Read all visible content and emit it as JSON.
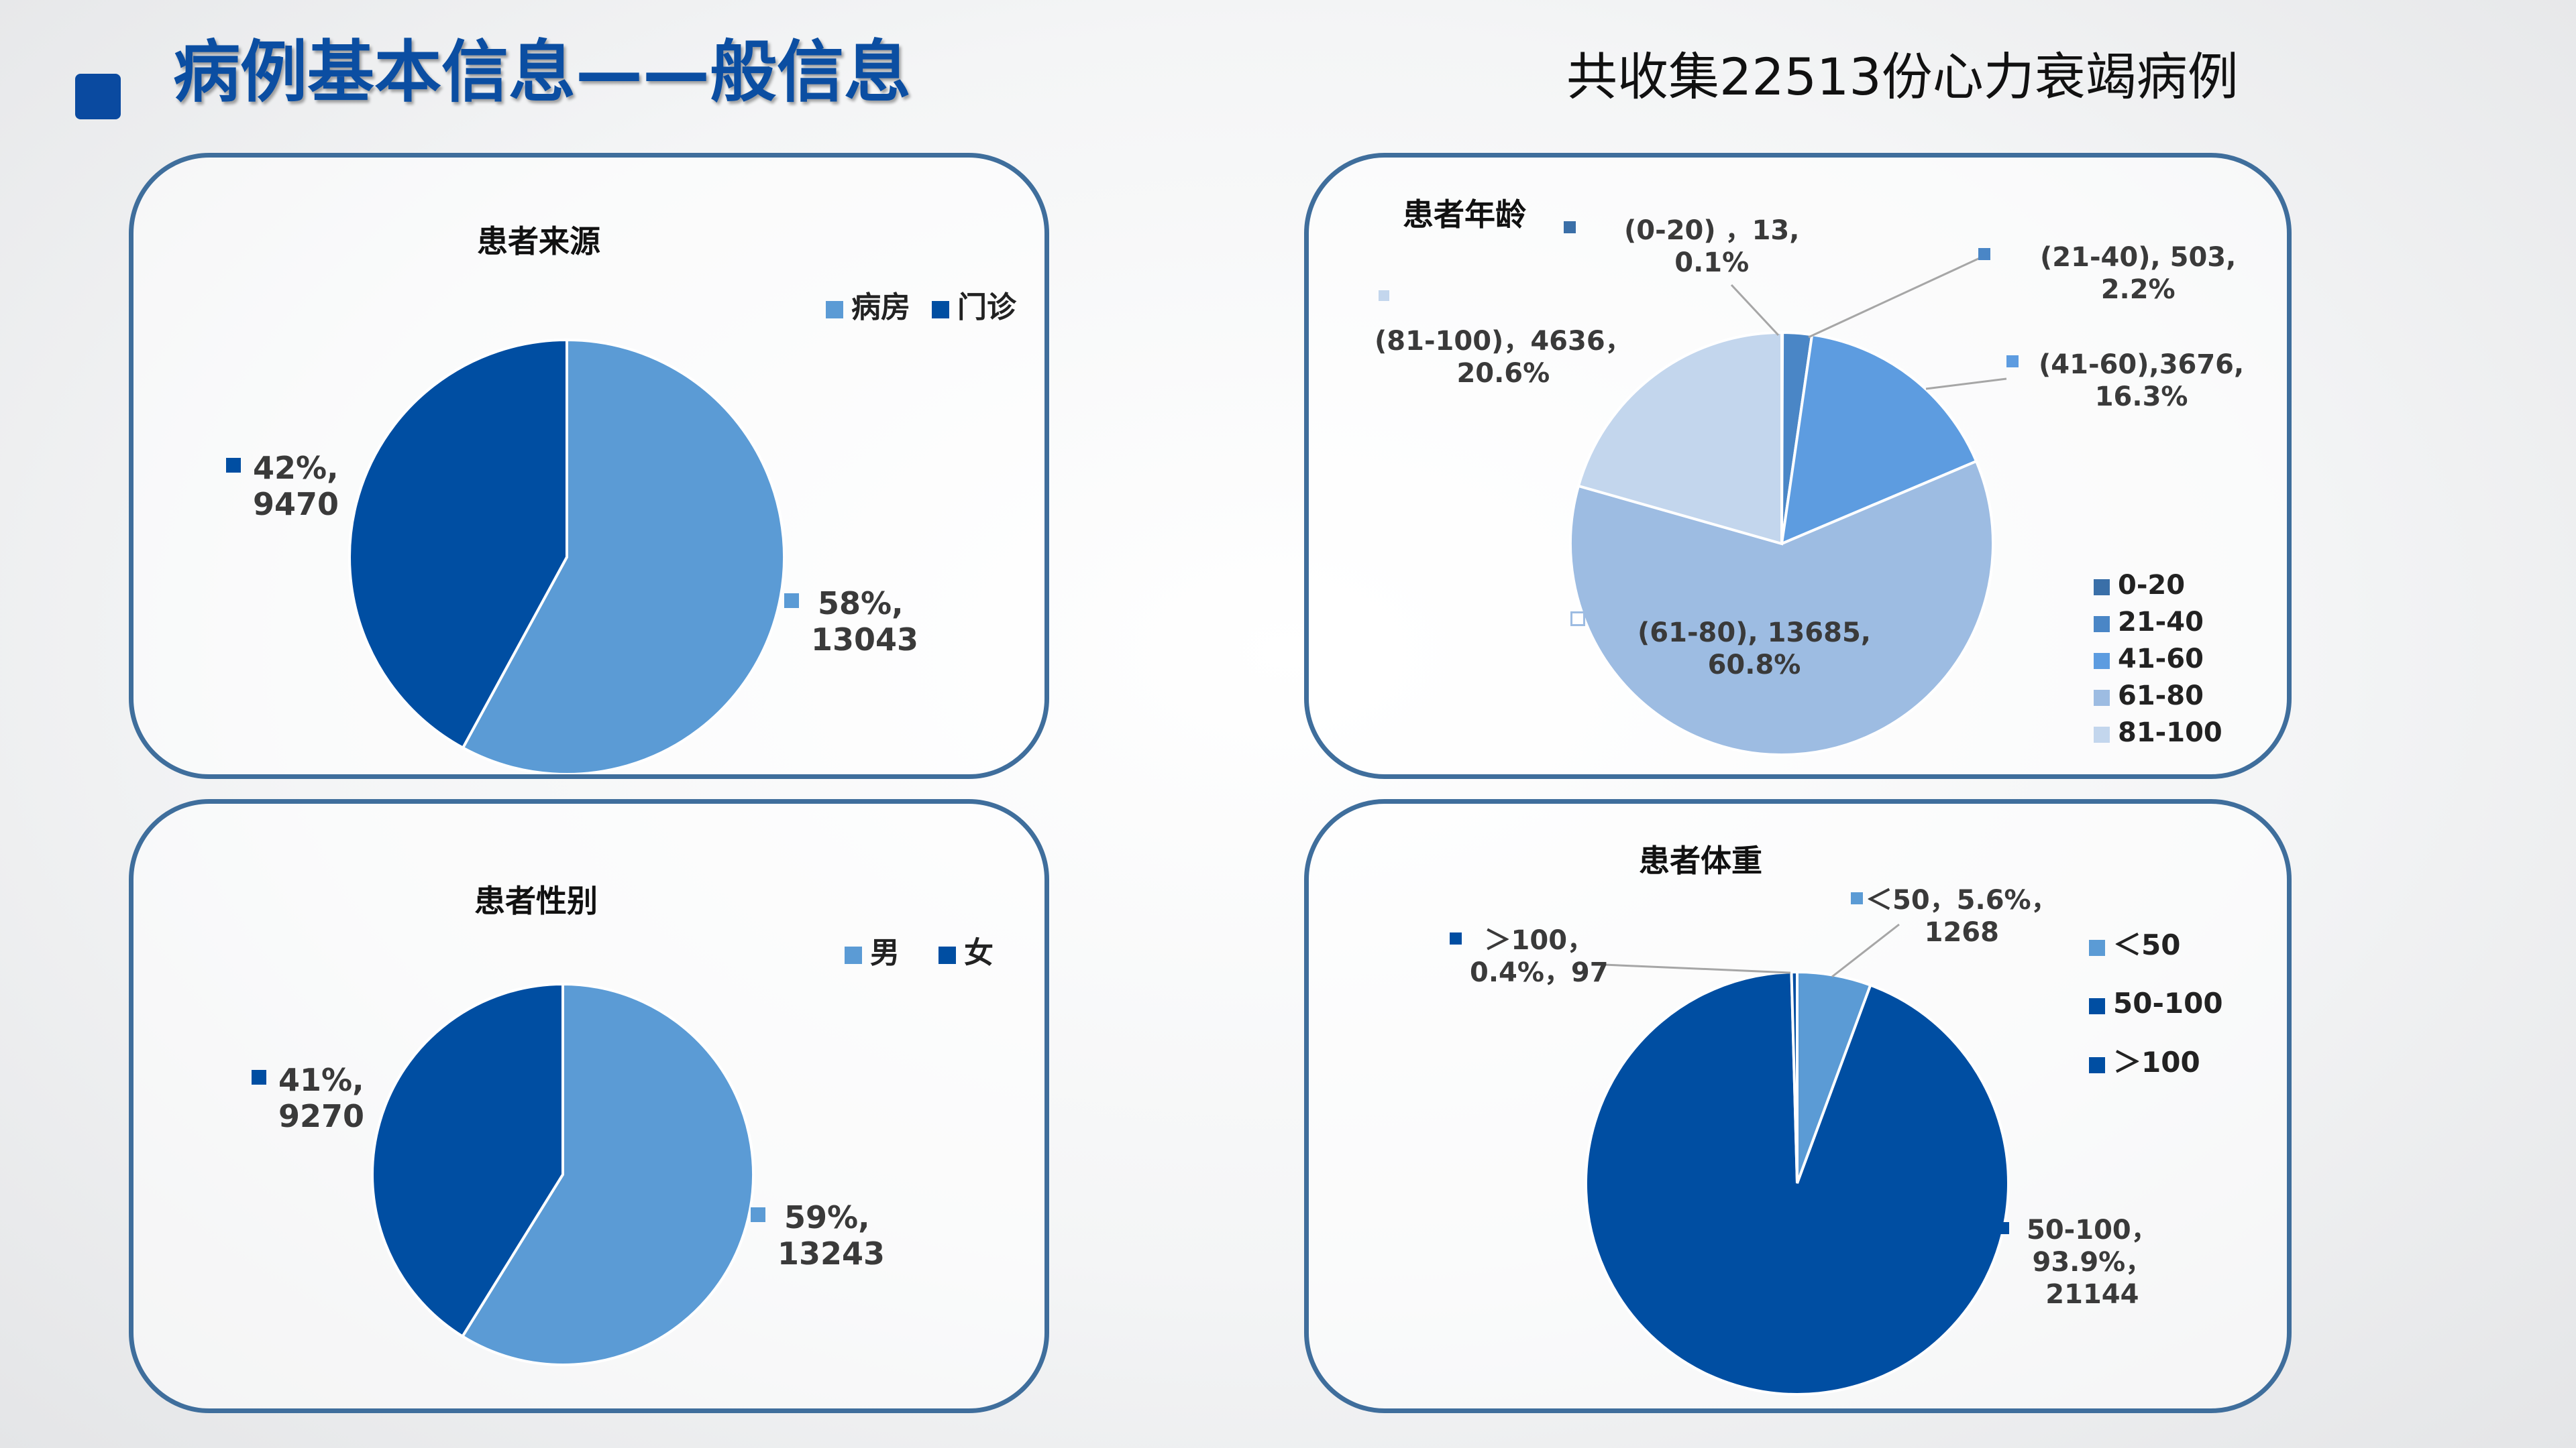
{
  "header": {
    "title": "病例基本信息——般信息",
    "subtitle": "共收集22513份心力衰竭病例"
  },
  "colors": {
    "light_blue": "#5b9bd5",
    "dark_blue": "#004ea2",
    "frame": "#3f6e9c",
    "age_0_20": "#3a6fa8",
    "age_21_40": "#4a86c6",
    "age_41_60": "#5d9ce0",
    "age_61_80": "#9dbce2",
    "age_81_100": "#c3d6ed"
  },
  "chart_data": [
    {
      "type": "pie",
      "title": "患者来源",
      "categories": [
        "病房",
        "门诊"
      ],
      "values": [
        13043,
        9470
      ],
      "percent_labels": [
        "58%,",
        "42%,"
      ],
      "value_labels": [
        "13043",
        "9470"
      ],
      "legend_position": "top-right",
      "colors": [
        "#5b9bd5",
        "#004ea2"
      ]
    },
    {
      "type": "pie",
      "title": "患者年龄",
      "categories": [
        "0-20",
        "21-40",
        "41-60",
        "61-80",
        "81-100"
      ],
      "values": [
        13,
        503,
        3676,
        13685,
        4636
      ],
      "data_labels": [
        [
          "(0-20) ，13,",
          "0.1%"
        ],
        [
          "(21-40), 503,",
          "2.2%"
        ],
        [
          "(41-60),3676,",
          "16.3%"
        ],
        [
          "(61-80), 13685,",
          "60.8%"
        ],
        [
          "(81-100)，4636，",
          "20.6%"
        ]
      ],
      "legend_position": "right",
      "colors": [
        "#3a6fa8",
        "#4a86c6",
        "#5d9ce0",
        "#9dbce2",
        "#c3d6ed"
      ]
    },
    {
      "type": "pie",
      "title": "患者性别",
      "categories": [
        "男",
        "女"
      ],
      "values": [
        13243,
        9270
      ],
      "percent_labels": [
        "59%,",
        "41%,"
      ],
      "value_labels": [
        "13243",
        "9270"
      ],
      "legend_position": "top-right",
      "colors": [
        "#5b9bd5",
        "#004ea2"
      ]
    },
    {
      "type": "pie",
      "title": "患者体重",
      "categories": [
        "＜50",
        "50-100",
        "＞100"
      ],
      "values": [
        1268,
        21144,
        97
      ],
      "data_labels": [
        [
          "＜50，5.6%，",
          "1268"
        ],
        [
          "50-100，",
          "93.9%，",
          "21144"
        ],
        [
          "＞100，",
          "0.4%，97"
        ]
      ],
      "legend_position": "right",
      "colors": [
        "#5b9bd5",
        "#004ea2",
        "#004ea2"
      ]
    }
  ]
}
